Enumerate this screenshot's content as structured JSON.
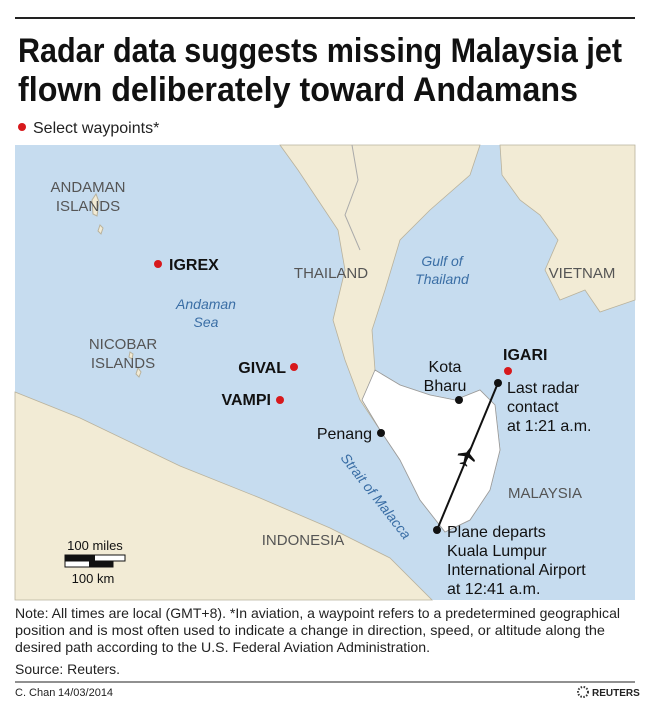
{
  "header": {
    "title_lines": [
      "Radar data suggests missing Malaysia jet",
      "flown deliberately toward Andamans"
    ],
    "legend": "Select waypoints*"
  },
  "map": {
    "regions": [
      [
        "ANDAMAN",
        "ISLANDS"
      ],
      [
        "NICOBAR",
        "ISLANDS"
      ],
      [
        "THAILAND"
      ],
      [
        "VIETNAM"
      ],
      [
        "MALAYSIA"
      ],
      [
        "INDONESIA"
      ]
    ],
    "seas": [
      [
        "Andaman",
        "Sea"
      ],
      [
        "Gulf of",
        "Thailand"
      ],
      [
        "Strait of Malacca"
      ]
    ],
    "waypoints": [
      "IGREX",
      "GIVAL",
      "VAMPI",
      "IGARI"
    ],
    "places": [
      [
        "Kota",
        "Bharu"
      ],
      [
        "Penang"
      ]
    ],
    "annotations": [
      [
        "Last radar",
        "contact",
        "at 1:21 a.m."
      ],
      [
        "Plane departs",
        "Kuala Lumpur",
        "International Airport",
        "at 12:41 a.m."
      ]
    ],
    "scale": {
      "miles": "100 miles",
      "km": "100 km"
    }
  },
  "footer": {
    "note_lines": [
      "Note: All times are local (GMT+8). *In aviation, a waypoint refers to a predetermined geographical",
      "position and is most often used to indicate a change in direction, speed, or altitude along the",
      "desired path according to the U.S. Federal Aviation Administration."
    ],
    "source": "Source: Reuters.",
    "credit": "C. Chan",
    "date": "14/03/2014",
    "logo": "REUTERS"
  }
}
